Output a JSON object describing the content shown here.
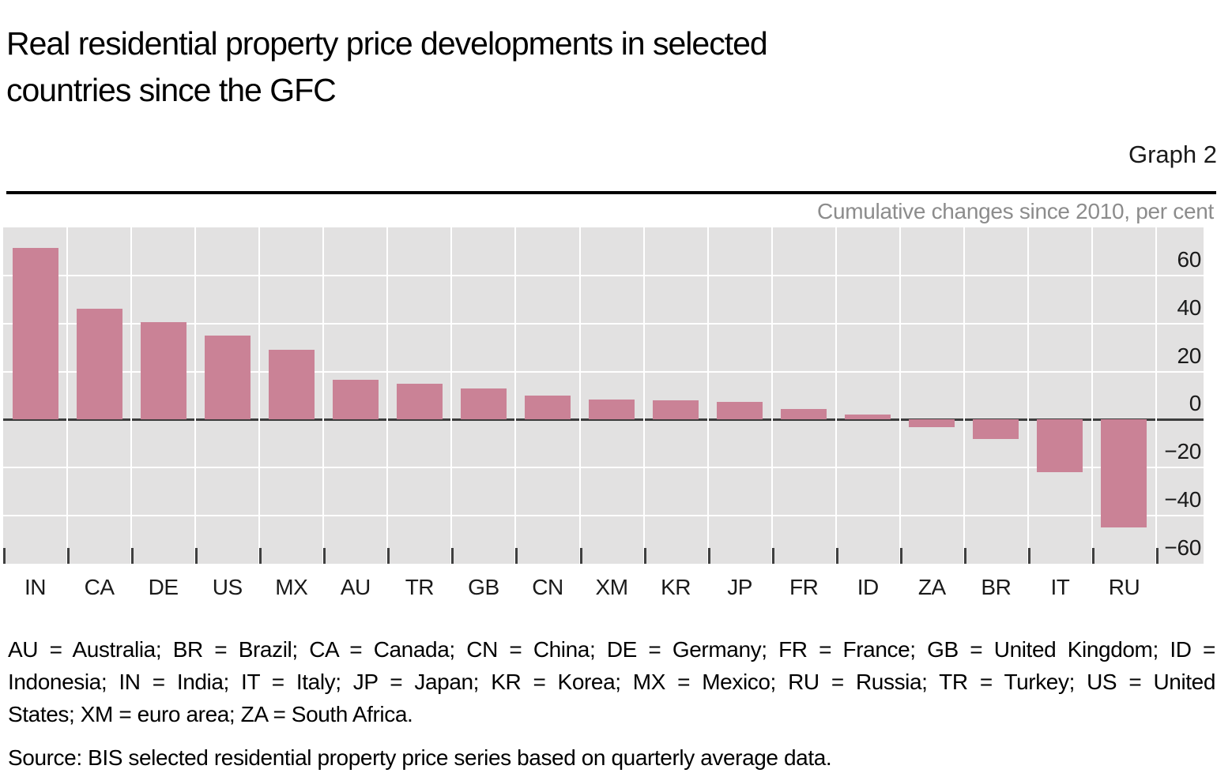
{
  "header": {
    "title_line1": "Real residential property price developments in selected",
    "title_line2": "countries since the GFC",
    "graph_label": "Graph 2"
  },
  "chart_data": {
    "type": "bar",
    "title": "Real residential property price developments in selected countries since the GFC",
    "graph_number": "Graph 2",
    "right_header": "Cumulative changes since 2010, per cent",
    "categories": [
      "IN",
      "CA",
      "DE",
      "US",
      "MX",
      "AU",
      "TR",
      "GB",
      "CN",
      "XM",
      "KR",
      "JP",
      "FR",
      "ID",
      "ZA",
      "BR",
      "IT",
      "RU"
    ],
    "values": [
      71.5,
      46,
      40.5,
      35,
      29,
      16.5,
      15,
      13,
      10,
      8.5,
      8,
      7.5,
      4.5,
      2,
      -3,
      -8,
      -22,
      -45
    ],
    "ylabel": "per cent",
    "ylim": [
      -60,
      80
    ],
    "yticks": [
      60,
      40,
      20,
      0,
      -20,
      -40,
      -60
    ],
    "grid": true,
    "legend_position": "none",
    "bar_color": "#ca8296",
    "plot_bg": "#e2e1e1",
    "grid_color": "#ffffff",
    "zero_line_color": "#3d3d3d"
  },
  "footnotes": {
    "lines": [
      "AU = Australia; BR = Brazil; CA = Canada; CN = China; DE = Germany; FR = France; GB = United Kingdom; ID =",
      "Indonesia; IN = India; IT = Italy; JP = Japan; KR = Korea; MX = Mexico; RU = Russia; TR = Turkey; US = United",
      "States; XM = euro area; ZA = South Africa."
    ]
  },
  "source": "Source: BIS selected residential property price series based on quarterly average data."
}
